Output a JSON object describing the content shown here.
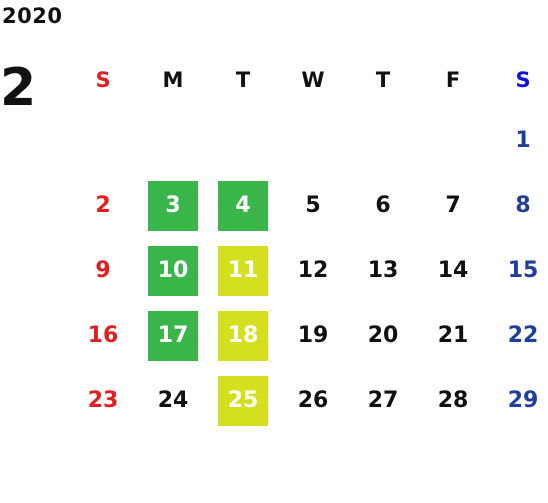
{
  "year": "2020",
  "month": "2",
  "weekdays": [
    "S",
    "M",
    "T",
    "W",
    "T",
    "F",
    "S"
  ],
  "weeks": [
    [
      "",
      "",
      "",
      "",
      "",
      "",
      "1"
    ],
    [
      "2",
      "3",
      "4",
      "5",
      "6",
      "7",
      "8"
    ],
    [
      "9",
      "10",
      "11",
      "12",
      "13",
      "14",
      "15"
    ],
    [
      "16",
      "17",
      "18",
      "19",
      "20",
      "21",
      "22"
    ],
    [
      "23",
      "24",
      "25",
      "26",
      "27",
      "28",
      "29"
    ]
  ],
  "highlights": {
    "green": [
      "3",
      "4",
      "10",
      "17"
    ],
    "yellow": [
      "11",
      "18",
      "25"
    ]
  },
  "colors": {
    "sunday": "#e02020",
    "saturday": "#1f3f9a",
    "green": "#39b54a",
    "yellow": "#d4e01e"
  }
}
